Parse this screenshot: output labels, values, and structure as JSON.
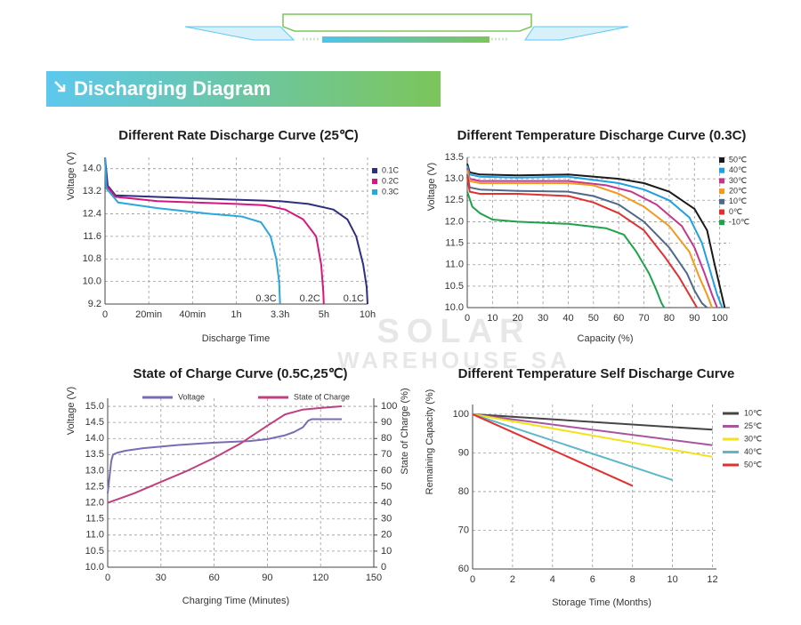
{
  "header": {
    "title": "Discharging Diagram"
  },
  "watermark": {
    "line1": "SOLAR",
    "line2": "WAREHOUSE SA"
  },
  "chart_data": [
    {
      "type": "line",
      "title": "Different Rate Discharge Curve (25℃)",
      "xlabel": "Discharge Time",
      "ylabel": "Voltage (V)",
      "xscale": "piecewise",
      "xlim": [
        0,
        10
      ],
      "xticks": [
        0,
        {
          "value": 0.3333,
          "label": "20min"
        },
        {
          "value": 0.6667,
          "label": "40min"
        },
        {
          "value": 1,
          "label": "1h"
        },
        {
          "value": 3.3,
          "label": "3.3h"
        },
        {
          "value": 5,
          "label": "5h"
        },
        {
          "value": 10,
          "label": "10h"
        }
      ],
      "ylim": [
        9.2,
        14.4
      ],
      "yticks": [
        9.2,
        {
          "value": 10,
          "label": "10.0"
        },
        10.8,
        11.6,
        12.4,
        13.2,
        {
          "value": 14,
          "label": "14.0"
        }
      ],
      "grid": true,
      "legend": "right",
      "series": [
        {
          "name": "0.1C",
          "color": "#2e2f7f",
          "x": [
            0,
            0.02,
            0.08,
            0.6667,
            1,
            3.3,
            4.4,
            6.1,
            7.7,
            8.7,
            9.5,
            9.9,
            10
          ],
          "values": [
            14.4,
            13.4,
            13.05,
            12.95,
            12.9,
            12.85,
            12.75,
            12.55,
            12.2,
            11.6,
            10.6,
            9.8,
            9.2
          ]
        },
        {
          "name": "0.2C",
          "color": "#d6177e",
          "x": [
            0,
            0.01,
            0.08,
            0.4,
            1,
            2.5,
            3.5,
            4.2,
            4.7,
            4.9,
            4.98,
            5
          ],
          "values": [
            14.4,
            13.4,
            13.0,
            12.85,
            12.75,
            12.7,
            12.55,
            12.2,
            11.6,
            10.6,
            9.6,
            9.2
          ]
        },
        {
          "name": "0.3C",
          "color": "#2aa7df",
          "x": [
            0,
            0.01,
            0.1,
            0.4,
            0.8,
            1.3,
            2.3,
            2.8,
            3.1,
            3.25,
            3.3
          ],
          "values": [
            14.4,
            13.3,
            12.8,
            12.6,
            12.4,
            12.3,
            12.1,
            11.6,
            10.8,
            10.0,
            9.2
          ]
        }
      ]
    },
    {
      "type": "line",
      "title": "Different Temperature Discharge Curve (0.3C)",
      "xlabel": "Capacity (%)",
      "ylabel": "Voltage (V)",
      "xlim": [
        0,
        104
      ],
      "xticks": [
        0,
        10,
        20,
        30,
        40,
        50,
        60,
        70,
        80,
        90,
        100
      ],
      "ylim": [
        10,
        13.5
      ],
      "yticks": [
        {
          "value": 10,
          "label": "10.0"
        },
        10.5,
        {
          "value": 11,
          "label": "11.0"
        },
        11.5,
        {
          "value": 12,
          "label": "12.0"
        },
        12.5,
        {
          "value": 13,
          "label": "13.0"
        },
        13.5
      ],
      "grid": true,
      "legend": "right",
      "series": [
        {
          "name": "50℃",
          "color": "#1a1a1a",
          "x": [
            0,
            1,
            5,
            20,
            40,
            60,
            70,
            80,
            90,
            95,
            98,
            100,
            102
          ],
          "values": [
            13.35,
            13.15,
            13.1,
            13.08,
            13.1,
            13.0,
            12.9,
            12.7,
            12.3,
            11.8,
            11.0,
            10.5,
            10.0
          ]
        },
        {
          "name": "40℃",
          "color": "#1fa0e3",
          "x": [
            0,
            1,
            5,
            20,
            40,
            60,
            70,
            80,
            88,
            93,
            96,
            99,
            101
          ],
          "values": [
            13.3,
            13.1,
            13.05,
            13.03,
            13.05,
            12.9,
            12.75,
            12.5,
            12.1,
            11.5,
            10.9,
            10.3,
            10.0
          ]
        },
        {
          "name": "30℃",
          "color": "#c4378f",
          "x": [
            0,
            1,
            5,
            20,
            40,
            55,
            65,
            75,
            85,
            90,
            94,
            97,
            99
          ],
          "values": [
            13.25,
            13.0,
            12.95,
            12.95,
            12.95,
            12.85,
            12.7,
            12.4,
            11.9,
            11.4,
            10.8,
            10.3,
            10.0
          ]
        },
        {
          "name": "20℃",
          "color": "#f39a1e",
          "x": [
            0,
            1,
            5,
            20,
            40,
            50,
            60,
            70,
            80,
            88,
            92,
            95,
            97
          ],
          "values": [
            13.2,
            12.95,
            12.9,
            12.9,
            12.9,
            12.85,
            12.65,
            12.35,
            11.9,
            11.3,
            10.7,
            10.3,
            10.0
          ]
        },
        {
          "name": "10℃",
          "color": "#50698a",
          "x": [
            0,
            1,
            5,
            20,
            40,
            50,
            60,
            70,
            80,
            87,
            90,
            93,
            95
          ],
          "values": [
            13.1,
            12.8,
            12.75,
            12.72,
            12.7,
            12.6,
            12.4,
            12.0,
            11.4,
            10.8,
            10.4,
            10.1,
            10.0
          ]
        },
        {
          "name": "0℃",
          "color": "#e03131",
          "x": [
            0,
            1,
            5,
            20,
            40,
            50,
            60,
            70,
            78,
            84,
            88,
            90,
            91
          ],
          "values": [
            13.05,
            12.7,
            12.65,
            12.65,
            12.6,
            12.45,
            12.2,
            11.8,
            11.2,
            10.7,
            10.3,
            10.1,
            10.0
          ]
        },
        {
          "name": "-10℃",
          "color": "#1fa34a",
          "x": [
            0,
            2,
            5,
            10,
            20,
            40,
            55,
            62,
            67,
            72,
            75,
            77,
            78
          ],
          "values": [
            12.7,
            12.35,
            12.2,
            12.05,
            12.0,
            11.95,
            11.85,
            11.7,
            11.3,
            10.8,
            10.4,
            10.1,
            10.0
          ]
        }
      ]
    },
    {
      "type": "line",
      "title": "State of Charge Curve (0.5C,25℃)",
      "xlabel": "Charging Time (Minutes)",
      "ylabel": "Voltage (V)",
      "y2label": "State of Charge (%)",
      "xlim": [
        0,
        150
      ],
      "xticks": [
        0,
        30,
        60,
        90,
        120,
        150
      ],
      "ylim": [
        10,
        15.25
      ],
      "yticks": [
        {
          "value": 10,
          "label": "10.0"
        },
        10.5,
        {
          "value": 11,
          "label": "11.0"
        },
        11.5,
        {
          "value": 12,
          "label": "12.0"
        },
        12.5,
        {
          "value": 13,
          "label": "13.0"
        },
        13.5,
        {
          "value": 14,
          "label": "14.0"
        },
        14.5,
        {
          "value": 15,
          "label": "15.0"
        }
      ],
      "y2lim": [
        0,
        105
      ],
      "y2ticks": [
        0,
        10,
        20,
        30,
        40,
        50,
        60,
        70,
        80,
        90,
        100
      ],
      "grid": true,
      "legend": "top",
      "series": [
        {
          "name": "Voltage",
          "color": "#7a6cb3",
          "x": [
            0,
            1,
            2,
            3,
            5,
            10,
            20,
            40,
            60,
            80,
            90,
            100,
            105,
            110,
            113,
            115,
            120,
            132
          ],
          "values": [
            12.3,
            12.8,
            13.3,
            13.5,
            13.55,
            13.62,
            13.7,
            13.8,
            13.87,
            13.92,
            13.98,
            14.1,
            14.2,
            14.35,
            14.55,
            14.6,
            14.6,
            14.6
          ]
        },
        {
          "name": "State of Charge",
          "color": "#c0407f",
          "axis": "y2",
          "x": [
            0,
            15,
            30,
            45,
            60,
            75,
            90,
            100,
            110,
            120,
            132
          ],
          "values": [
            40,
            46,
            53,
            60,
            68,
            77,
            88,
            95,
            98,
            99,
            100
          ]
        }
      ]
    },
    {
      "type": "line",
      "title": "Different Temperature Self Discharge Curve",
      "xlabel": "Storage Time (Months)",
      "ylabel": "Remaining Capacity (%)",
      "xlim": [
        0,
        12.2
      ],
      "xticks": [
        0,
        2,
        4,
        6,
        8,
        10,
        12
      ],
      "ylim": [
        60,
        102.5
      ],
      "yticks": [
        60,
        70,
        80,
        90,
        100
      ],
      "grid": true,
      "legend": "right",
      "series": [
        {
          "name": "10℃",
          "color": "#454545",
          "x": [
            0,
            12
          ],
          "values": [
            100,
            96
          ]
        },
        {
          "name": "25℃",
          "color": "#a8559f",
          "x": [
            0,
            12
          ],
          "values": [
            100,
            92
          ]
        },
        {
          "name": "30℃",
          "color": "#f2e21a",
          "x": [
            0,
            12
          ],
          "values": [
            100,
            89
          ]
        },
        {
          "name": "40℃",
          "color": "#5bb8c8",
          "x": [
            0,
            10
          ],
          "values": [
            100,
            83
          ]
        },
        {
          "name": "50℃",
          "color": "#e03030",
          "x": [
            0,
            8
          ],
          "values": [
            100,
            81.5
          ]
        }
      ]
    }
  ]
}
